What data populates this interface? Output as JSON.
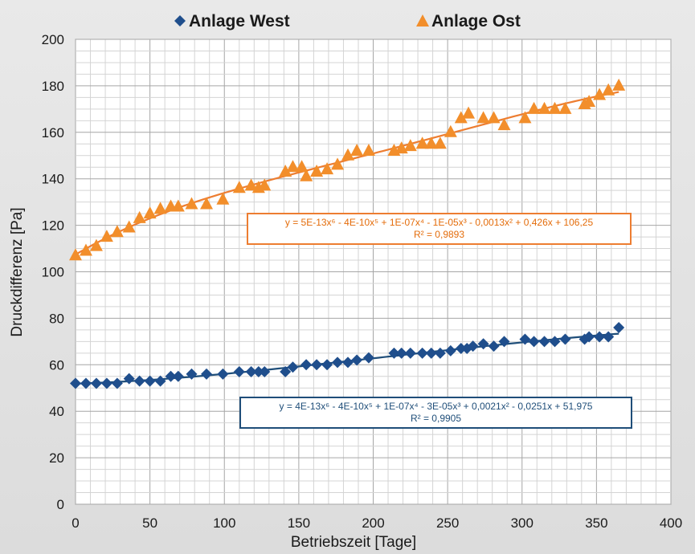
{
  "chart_data": {
    "type": "scatter",
    "xlabel": "Betriebszeit [Tage]",
    "ylabel": "Druckdifferenz [Pa]",
    "xlim": [
      0,
      400
    ],
    "ylim": [
      0,
      200
    ],
    "x_ticks": [
      "0",
      "50",
      "100",
      "150",
      "200",
      "250",
      "300",
      "350",
      "400"
    ],
    "y_ticks": [
      "0",
      "20",
      "40",
      "60",
      "80",
      "100",
      "120",
      "140",
      "160",
      "180",
      "200"
    ],
    "grid": true,
    "legend_position": "top",
    "series": [
      {
        "name": "Anlage West",
        "marker": "diamond",
        "color": "#1f4e8c",
        "points": [
          [
            0,
            52
          ],
          [
            7,
            52
          ],
          [
            14,
            52
          ],
          [
            21,
            52
          ],
          [
            28,
            52
          ],
          [
            36,
            54
          ],
          [
            43,
            53
          ],
          [
            50,
            53
          ],
          [
            57,
            53
          ],
          [
            64,
            55
          ],
          [
            69,
            55
          ],
          [
            78,
            56
          ],
          [
            88,
            56
          ],
          [
            99,
            56
          ],
          [
            110,
            57
          ],
          [
            118,
            57
          ],
          [
            123,
            57
          ],
          [
            127,
            57
          ],
          [
            141,
            57
          ],
          [
            146,
            59
          ],
          [
            155,
            60
          ],
          [
            162,
            60
          ],
          [
            169,
            60
          ],
          [
            176,
            61
          ],
          [
            183,
            61
          ],
          [
            189,
            62
          ],
          [
            197,
            63
          ],
          [
            214,
            65
          ],
          [
            219,
            65
          ],
          [
            225,
            65
          ],
          [
            233,
            65
          ],
          [
            239,
            65
          ],
          [
            245,
            65
          ],
          [
            252,
            66
          ],
          [
            259,
            67
          ],
          [
            263,
            67
          ],
          [
            267,
            68
          ],
          [
            274,
            69
          ],
          [
            281,
            68
          ],
          [
            288,
            70
          ],
          [
            302,
            71
          ],
          [
            308,
            70
          ],
          [
            315,
            70
          ],
          [
            322,
            70
          ],
          [
            329,
            71
          ],
          [
            342,
            71
          ],
          [
            345,
            72
          ],
          [
            352,
            72
          ],
          [
            358,
            72
          ],
          [
            365,
            76
          ]
        ],
        "trendline_equation": "y = 4E-13x⁶ - 4E-10x⁵ + 1E-07x⁴ - 3E-05x³ + 0,0021x² - 0,0251x + 51,975",
        "r_squared": "R² = 0,9905",
        "trendline_color": "#1f4e79"
      },
      {
        "name": "Anlage Ost",
        "marker": "triangle",
        "color": "#f28e2b",
        "points": [
          [
            0,
            107
          ],
          [
            7,
            109
          ],
          [
            14,
            111
          ],
          [
            21,
            115
          ],
          [
            28,
            117
          ],
          [
            36,
            119
          ],
          [
            43,
            123
          ],
          [
            50,
            125
          ],
          [
            57,
            127
          ],
          [
            64,
            128
          ],
          [
            69,
            128
          ],
          [
            78,
            129
          ],
          [
            88,
            129
          ],
          [
            99,
            131
          ],
          [
            110,
            136
          ],
          [
            118,
            137
          ],
          [
            123,
            136
          ],
          [
            127,
            137
          ],
          [
            141,
            143
          ],
          [
            146,
            145
          ],
          [
            152,
            145
          ],
          [
            155,
            141
          ],
          [
            162,
            143
          ],
          [
            169,
            144
          ],
          [
            176,
            146
          ],
          [
            183,
            150
          ],
          [
            189,
            152
          ],
          [
            197,
            152
          ],
          [
            214,
            152
          ],
          [
            219,
            153
          ],
          [
            225,
            154
          ],
          [
            233,
            155
          ],
          [
            239,
            155
          ],
          [
            245,
            155
          ],
          [
            252,
            160
          ],
          [
            259,
            166
          ],
          [
            264,
            168
          ],
          [
            274,
            166
          ],
          [
            281,
            166
          ],
          [
            288,
            163
          ],
          [
            302,
            166
          ],
          [
            308,
            170
          ],
          [
            315,
            170
          ],
          [
            322,
            170
          ],
          [
            329,
            170
          ],
          [
            342,
            172
          ],
          [
            345,
            173
          ],
          [
            352,
            176
          ],
          [
            358,
            178
          ],
          [
            365,
            180
          ]
        ],
        "trendline_equation": "y = 5E-13x⁶ - 4E-10x⁵ + 1E-07x⁴ - 1E-05x³ - 0,0013x² + 0,426x + 106,25",
        "r_squared": "R² = 0,9893",
        "trendline_color": "#ed7d31"
      }
    ]
  },
  "legend": {
    "west_label": "Anlage West",
    "ost_label": "Anlage Ost"
  }
}
